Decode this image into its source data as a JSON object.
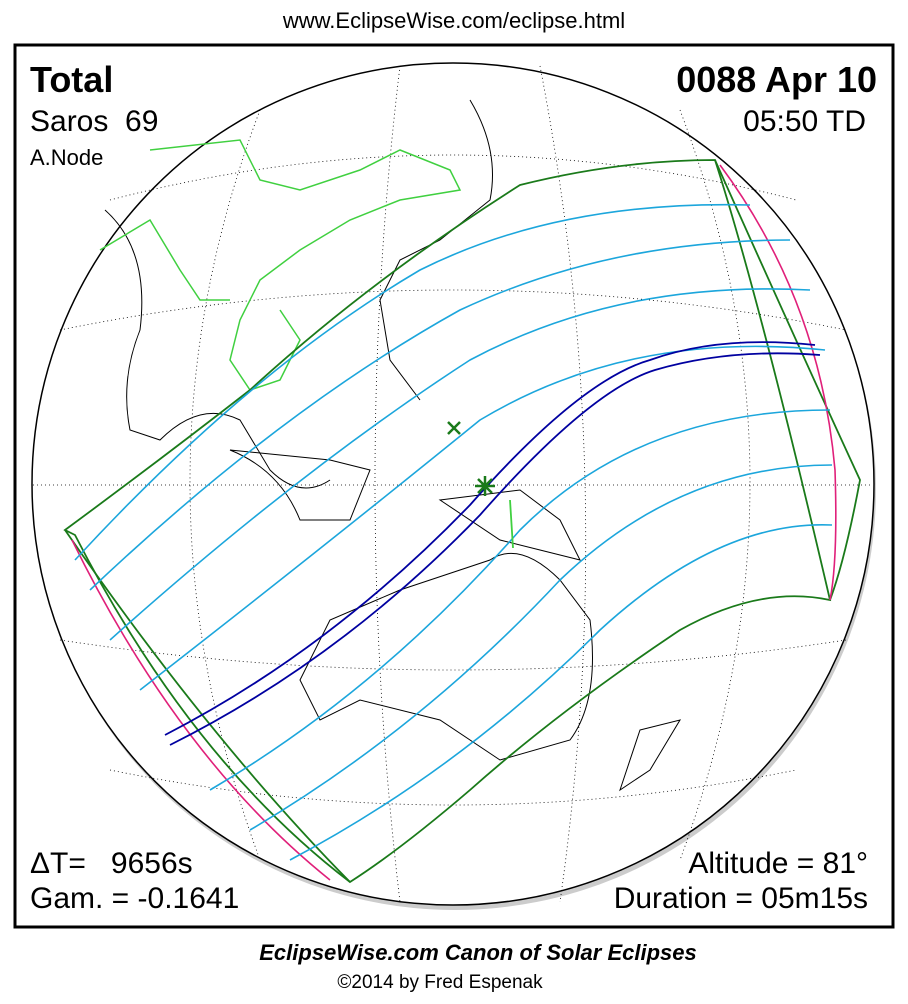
{
  "header": {
    "url": "www.EclipseWise.com/eclipse.html"
  },
  "eclipse": {
    "type": "Total",
    "date": "0088 Apr 10",
    "saros": "Saros  69",
    "time": "05:50 TD",
    "node": "A.Node",
    "delta_t": "ΔT=   9656s",
    "gamma": "Gam. = -0.1641",
    "altitude": "Altitude = 81°",
    "duration": "Duration = 05m15s"
  },
  "footer": {
    "title": "EclipseWise.com Canon of Solar Eclipses",
    "copyright": "©2014 by Fred Espenak"
  }
}
